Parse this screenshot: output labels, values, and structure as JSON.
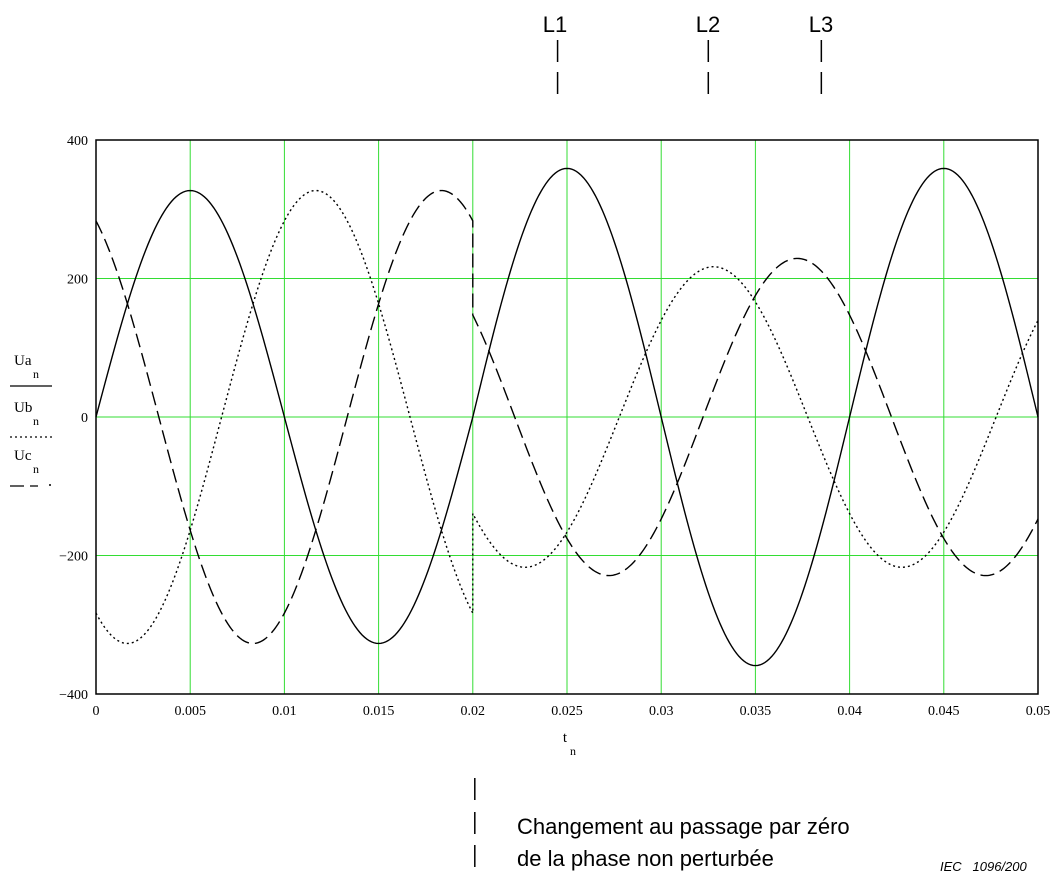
{
  "phase_labels": [
    "L1",
    "L2",
    "L3"
  ],
  "phase_marker_times": [
    0.0245,
    0.0325,
    0.0385
  ],
  "annotation": {
    "line1": "Changement au passage par zéro",
    "line2": "de la phase non perturbée",
    "time": 0.02
  },
  "credit": "IEC   1096/200",
  "colors": {
    "grid": "#33dd33",
    "curve": "#000000",
    "frame": "#000000"
  },
  "chart_data": {
    "type": "line",
    "xlabel": "t",
    "xlabel_sub": "n",
    "ylabel_parts": [
      {
        "base": "Ua",
        "sub": "n"
      },
      {
        "base": "Ub",
        "sub": "n"
      },
      {
        "base": "Uc",
        "sub": "n"
      }
    ],
    "xlim": [
      0,
      0.05
    ],
    "ylim": [
      -400,
      400
    ],
    "xticks": [
      0,
      0.005,
      0.01,
      0.015,
      0.02,
      0.025,
      0.03,
      0.035,
      0.04,
      0.045,
      0.05
    ],
    "xtick_labels": [
      "0",
      "0.005",
      "0.01",
      "0.015",
      "0.02",
      "0.025",
      "0.03",
      "0.035",
      "0.04",
      "0.045",
      "0.05"
    ],
    "yticks": [
      -400,
      -200,
      0,
      200,
      400
    ],
    "ytick_labels": [
      "−400",
      "−200",
      "0",
      "200",
      "400"
    ],
    "grid": true,
    "series": [
      {
        "style": "solid",
        "segments": [
          {
            "t0": 0,
            "t1": 0.05,
            "amp": 327,
            "amp2": 359,
            "phase_deg": 0,
            "phase2_deg": 0
          }
        ]
      },
      {
        "style": "dotted",
        "segments": [
          {
            "t0": 0,
            "t1": 0.02,
            "amp": 327,
            "phase_deg": -120
          },
          {
            "t0": 0.02,
            "t1": 0.05,
            "amp": 217,
            "phase_deg": -140
          }
        ]
      },
      {
        "style": "dashed",
        "segments": [
          {
            "t0": 0,
            "t1": 0.02,
            "amp": 327,
            "phase_deg": 120
          },
          {
            "t0": 0.02,
            "t1": 0.05,
            "amp": 229,
            "phase_deg": 140
          }
        ]
      }
    ],
    "frequency_hz": 50
  }
}
